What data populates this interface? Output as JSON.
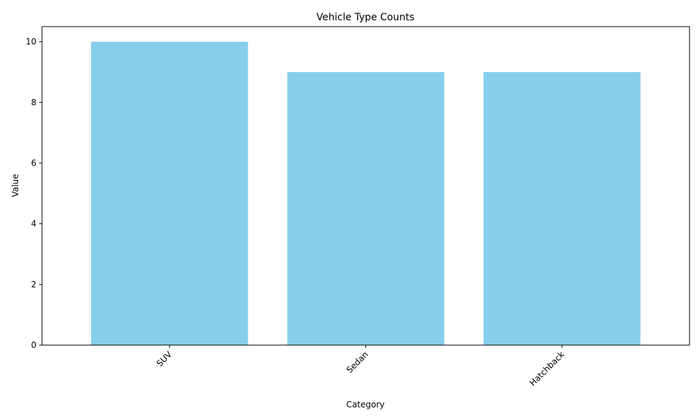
{
  "chart_data": {
    "type": "bar",
    "title": "Vehicle Type Counts",
    "xlabel": "Category",
    "ylabel": "Value",
    "categories": [
      "SUV",
      "Sedan",
      "Hatchback"
    ],
    "values": [
      10,
      9,
      9
    ],
    "ylim": [
      0,
      10.5
    ],
    "yticks": [
      "0",
      "2",
      "4",
      "6",
      "8",
      "10"
    ],
    "bar_color": "#87CEEB",
    "grid": false,
    "legend": "none",
    "xtick_rotation_deg": 45
  }
}
